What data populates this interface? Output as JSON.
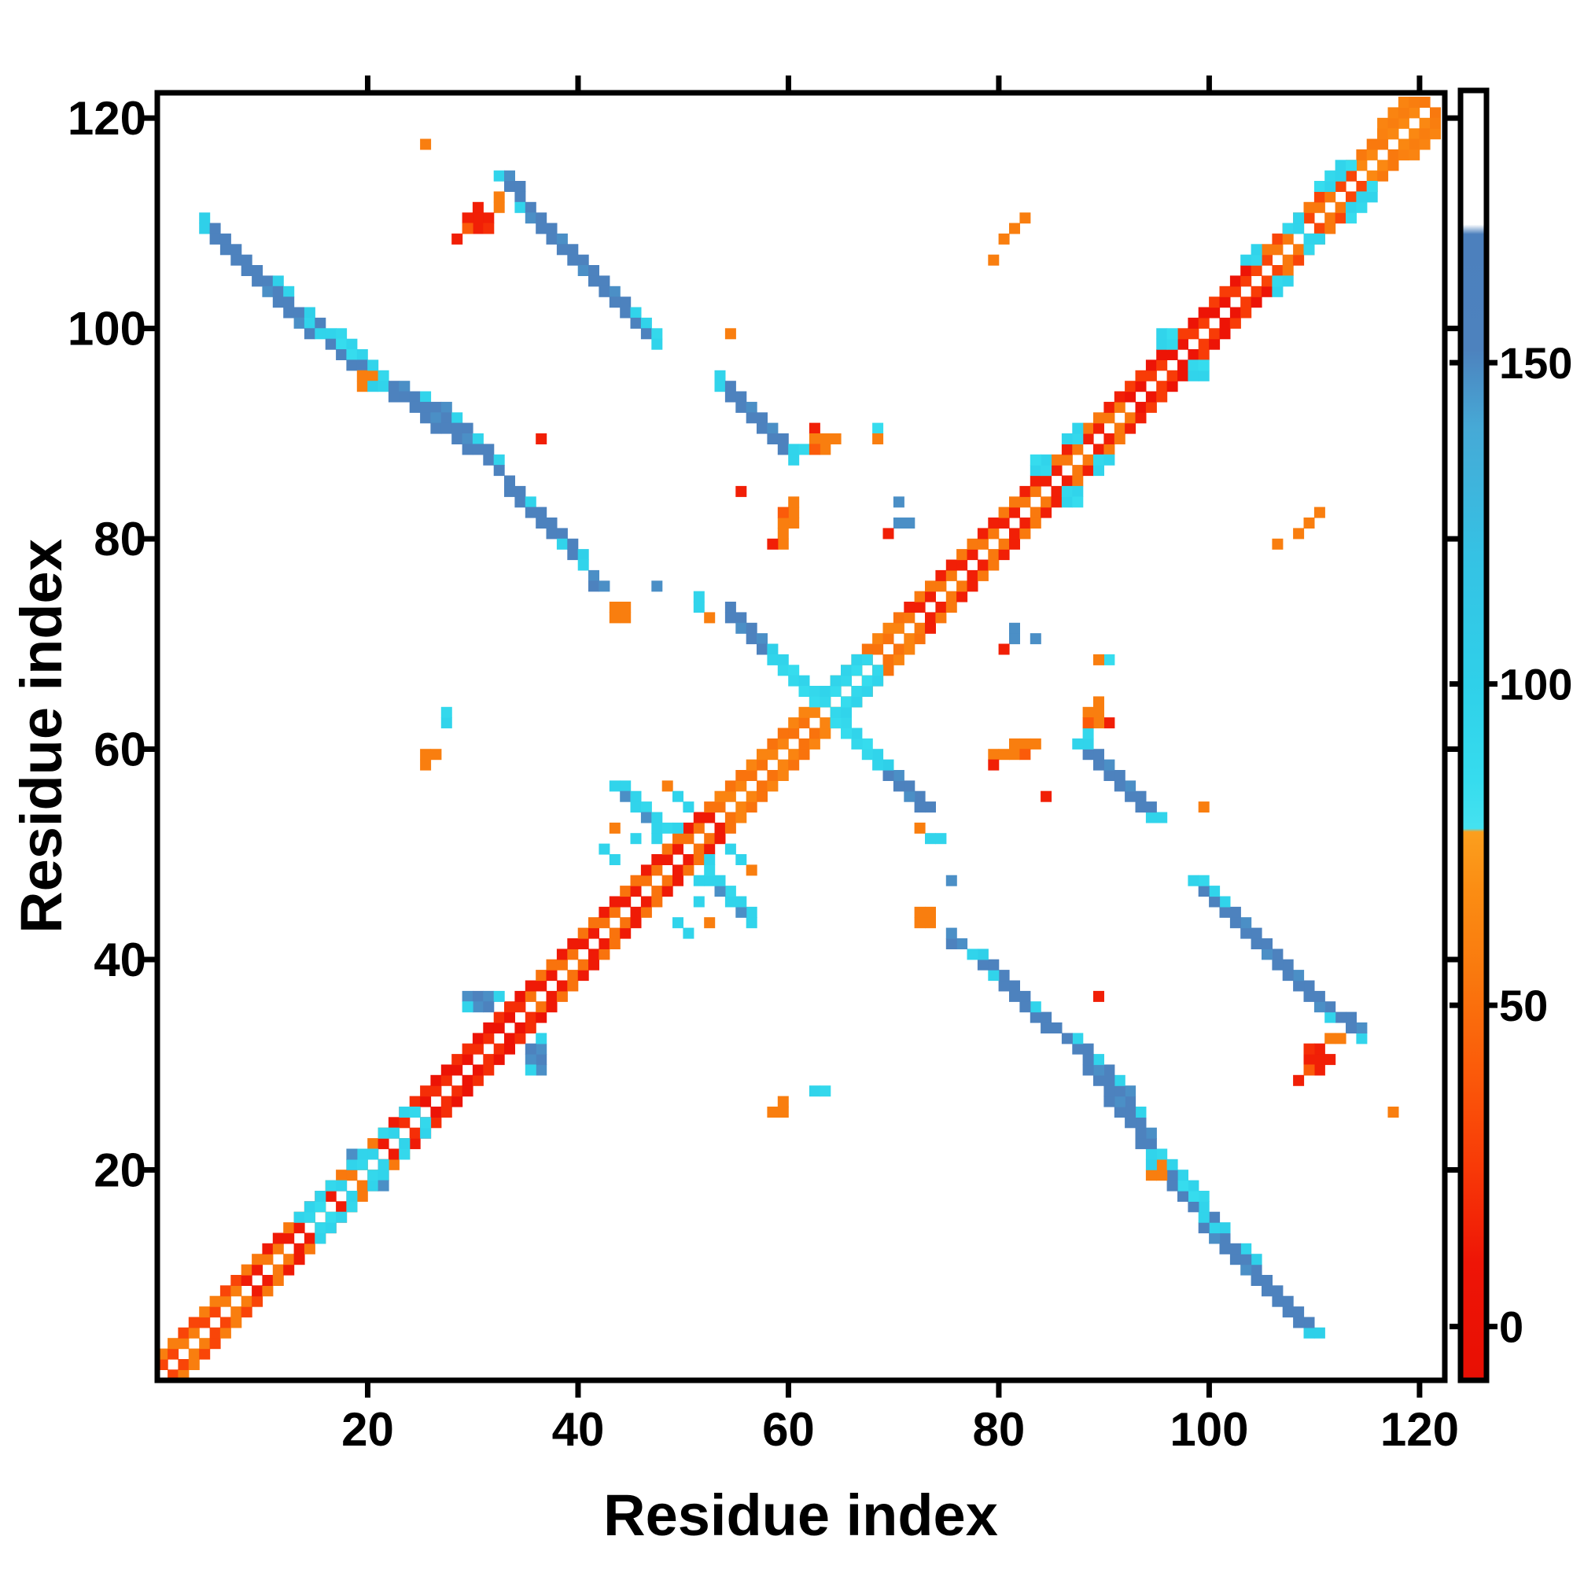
{
  "chart_data": {
    "type": "heatmap",
    "title": "",
    "xlabel": "Residue index",
    "ylabel": "Residue index",
    "x_ticks": [
      20,
      40,
      60,
      80,
      100,
      120
    ],
    "y_ticks": [
      20,
      40,
      60,
      80,
      100,
      120
    ],
    "x_range": [
      0,
      122.4
    ],
    "y_range": [
      0,
      122.4
    ],
    "n_residues": 122,
    "grid": false,
    "legend_position": "right-colorbar",
    "colorbar": {
      "ticks": [
        0,
        50,
        100,
        150
      ],
      "vmin": -8,
      "vmax": 192,
      "stops": [
        [
          192,
          "#ffffff"
        ],
        [
          171.5,
          "#ffffff"
        ],
        [
          170,
          "#4c80bd"
        ],
        [
          152,
          "#4d82be"
        ],
        [
          140,
          "#46a9d6"
        ],
        [
          120,
          "#35c2e4"
        ],
        [
          100,
          "#2fd0e9"
        ],
        [
          85,
          "#36dcee"
        ],
        [
          77.5,
          "#45e2f0"
        ],
        [
          77,
          "#fb9f1e"
        ],
        [
          68,
          "#fb8d13"
        ],
        [
          55,
          "#f9790e"
        ],
        [
          40,
          "#fb5b0a"
        ],
        [
          25,
          "#f83a07"
        ],
        [
          10,
          "#ee1506"
        ],
        [
          -8,
          "#e80f04"
        ]
      ]
    },
    "diagonal_band": {
      "note": "contact band cells (i,i+1) and (i,i+2) plus mirrors; exact diagonal (i,i) is white",
      "twist_period": 4,
      "regions": [
        {
          "from": 1,
          "to": 8,
          "lo": 30,
          "hi": 58
        },
        {
          "from": 9,
          "to": 23,
          "lo": 12,
          "hi": 55
        },
        {
          "from": 24,
          "to": 35,
          "lo": 5,
          "hi": 20
        },
        {
          "from": 36,
          "to": 53,
          "lo": 12,
          "hi": 52
        },
        {
          "from": 54,
          "to": 71,
          "lo": 52,
          "hi": 62
        },
        {
          "from": 72,
          "to": 92,
          "lo": 14,
          "hi": 55
        },
        {
          "from": 93,
          "to": 104,
          "lo": 6,
          "hi": 26
        },
        {
          "from": 105,
          "to": 114,
          "lo": 30,
          "hi": 55
        },
        {
          "from": 115,
          "to": 121,
          "lo": 55,
          "hi": 65
        }
      ]
    },
    "cells": [
      [
        5,
        111,
        100
      ],
      [
        5,
        110,
        100
      ],
      [
        6,
        110,
        152
      ],
      [
        6,
        109,
        152
      ],
      [
        7,
        109,
        152
      ],
      [
        7,
        108,
        152
      ],
      [
        8,
        108,
        152
      ],
      [
        8,
        107,
        152
      ],
      [
        9,
        107,
        152
      ],
      [
        9,
        106,
        152
      ],
      [
        10,
        106,
        152
      ],
      [
        10,
        105,
        152
      ],
      [
        11,
        105,
        152
      ],
      [
        11,
        104,
        148
      ],
      [
        12,
        105,
        100
      ],
      [
        12,
        104,
        152
      ],
      [
        12,
        103,
        152
      ],
      [
        13,
        104,
        95
      ],
      [
        13,
        103,
        152
      ],
      [
        13,
        102,
        152
      ],
      [
        14,
        102,
        152
      ],
      [
        14,
        101,
        148
      ],
      [
        15,
        102,
        100
      ],
      [
        15,
        101,
        95
      ],
      [
        15,
        100,
        152
      ],
      [
        16,
        101,
        152
      ],
      [
        16,
        100,
        95
      ],
      [
        17,
        100,
        95
      ],
      [
        17,
        99,
        152
      ],
      [
        18,
        100,
        90
      ],
      [
        18,
        99,
        85
      ],
      [
        18,
        98,
        152
      ],
      [
        19,
        99,
        95
      ],
      [
        19,
        98,
        85
      ],
      [
        19,
        97,
        152
      ],
      [
        20,
        98,
        95
      ],
      [
        20,
        97,
        152
      ],
      [
        20,
        96,
        58
      ],
      [
        21,
        96,
        58
      ],
      [
        20,
        95,
        58
      ],
      [
        21,
        97,
        95
      ],
      [
        21,
        95,
        100
      ],
      [
        22,
        96,
        90
      ],
      [
        22,
        95,
        95
      ],
      [
        23,
        95,
        152
      ],
      [
        23,
        94,
        152
      ],
      [
        24,
        95,
        148
      ],
      [
        24,
        94,
        152
      ],
      [
        25,
        94,
        152
      ],
      [
        25,
        93,
        152
      ],
      [
        26,
        94,
        95
      ],
      [
        26,
        93,
        152
      ],
      [
        26,
        92,
        152
      ],
      [
        27,
        93,
        152
      ],
      [
        27,
        92,
        148
      ],
      [
        27,
        91,
        152
      ],
      [
        28,
        93,
        148
      ],
      [
        28,
        92,
        152
      ],
      [
        28,
        91,
        152
      ],
      [
        29,
        92,
        95
      ],
      [
        29,
        91,
        152
      ],
      [
        29,
        90,
        152
      ],
      [
        30,
        91,
        152
      ],
      [
        30,
        90,
        148
      ],
      [
        30,
        89,
        152
      ],
      [
        31,
        90,
        95
      ],
      [
        31,
        89,
        152
      ],
      [
        32,
        89,
        152
      ],
      [
        32,
        88,
        152
      ],
      [
        33,
        88,
        95
      ],
      [
        33,
        87,
        152
      ],
      [
        34,
        86,
        152
      ],
      [
        34,
        85,
        152
      ],
      [
        35,
        85,
        152
      ],
      [
        35,
        84,
        152
      ],
      [
        36,
        84,
        95
      ],
      [
        36,
        83,
        152
      ],
      [
        37,
        83,
        152
      ],
      [
        37,
        82,
        152
      ],
      [
        38,
        82,
        152
      ],
      [
        38,
        81,
        152
      ],
      [
        39,
        81,
        152
      ],
      [
        39,
        80,
        95
      ],
      [
        40,
        80,
        152
      ],
      [
        40,
        79,
        152
      ],
      [
        41,
        79,
        100
      ],
      [
        41,
        78,
        95
      ],
      [
        42,
        77,
        148
      ],
      [
        42,
        76,
        152
      ],
      [
        43,
        76,
        148
      ],
      [
        44,
        74,
        58
      ],
      [
        45,
        74,
        58
      ],
      [
        44,
        73,
        58
      ],
      [
        45,
        73,
        58
      ],
      [
        48,
        76,
        148
      ],
      [
        52,
        75,
        95
      ],
      [
        52,
        74,
        95
      ],
      [
        53,
        73,
        58
      ],
      [
        55,
        74,
        152
      ],
      [
        55,
        73,
        152
      ],
      [
        56,
        73,
        152
      ],
      [
        56,
        72,
        148
      ],
      [
        57,
        72,
        152
      ],
      [
        57,
        71,
        152
      ],
      [
        58,
        71,
        148
      ],
      [
        58,
        70,
        152
      ],
      [
        59,
        70,
        100
      ],
      [
        59,
        69,
        95
      ],
      [
        60,
        69,
        95
      ],
      [
        60,
        68,
        90
      ],
      [
        61,
        68,
        85
      ],
      [
        61,
        67,
        90
      ],
      [
        62,
        67,
        95
      ],
      [
        62,
        66,
        85
      ],
      [
        63,
        66,
        90
      ],
      [
        63,
        65,
        85
      ],
      [
        64,
        65,
        90
      ],
      [
        64,
        66,
        95
      ],
      [
        65,
        66,
        85
      ],
      [
        65,
        67,
        95
      ],
      [
        66,
        67,
        90
      ],
      [
        66,
        68,
        95
      ],
      [
        67,
        68,
        85
      ],
      [
        67,
        69,
        95
      ],
      [
        68,
        69,
        90
      ],
      [
        33,
        115,
        95
      ],
      [
        34,
        115,
        148
      ],
      [
        34,
        114,
        152
      ],
      [
        35,
        114,
        152
      ],
      [
        35,
        113,
        152
      ],
      [
        35,
        112,
        95
      ],
      [
        36,
        112,
        152
      ],
      [
        36,
        111,
        148
      ],
      [
        37,
        111,
        152
      ],
      [
        37,
        110,
        152
      ],
      [
        38,
        110,
        152
      ],
      [
        38,
        109,
        152
      ],
      [
        39,
        109,
        148
      ],
      [
        39,
        108,
        152
      ],
      [
        40,
        108,
        152
      ],
      [
        40,
        107,
        152
      ],
      [
        41,
        107,
        152
      ],
      [
        41,
        106,
        148
      ],
      [
        42,
        106,
        152
      ],
      [
        42,
        105,
        152
      ],
      [
        43,
        105,
        152
      ],
      [
        43,
        104,
        152
      ],
      [
        44,
        104,
        148
      ],
      [
        44,
        103,
        152
      ],
      [
        45,
        103,
        152
      ],
      [
        45,
        102,
        152
      ],
      [
        46,
        102,
        95
      ],
      [
        46,
        101,
        152
      ],
      [
        47,
        101,
        95
      ],
      [
        47,
        100,
        152
      ],
      [
        48,
        100,
        90
      ],
      [
        48,
        99,
        95
      ],
      [
        33,
        113,
        58
      ],
      [
        33,
        112,
        58
      ],
      [
        31,
        112,
        14
      ],
      [
        31,
        111,
        14
      ],
      [
        32,
        111,
        14
      ],
      [
        31,
        110,
        14
      ],
      [
        32,
        110,
        20
      ],
      [
        30,
        111,
        14
      ],
      [
        29,
        109,
        14
      ],
      [
        30,
        110,
        40
      ],
      [
        54,
        96,
        95
      ],
      [
        54,
        95,
        95
      ],
      [
        55,
        95,
        152
      ],
      [
        55,
        94,
        152
      ],
      [
        56,
        94,
        152
      ],
      [
        56,
        93,
        152
      ],
      [
        57,
        93,
        148
      ],
      [
        57,
        92,
        152
      ],
      [
        58,
        92,
        152
      ],
      [
        58,
        91,
        152
      ],
      [
        59,
        91,
        148
      ],
      [
        59,
        90,
        152
      ],
      [
        60,
        90,
        152
      ],
      [
        60,
        89,
        152
      ],
      [
        61,
        89,
        95
      ],
      [
        61,
        88,
        95
      ],
      [
        62,
        89,
        90
      ],
      [
        63,
        91,
        14
      ],
      [
        63,
        90,
        58
      ],
      [
        64,
        90,
        58
      ],
      [
        64,
        89,
        58
      ],
      [
        63,
        89,
        40
      ],
      [
        65,
        90,
        58
      ],
      [
        55,
        100,
        58
      ],
      [
        69,
        91,
        85
      ],
      [
        69,
        90,
        58
      ],
      [
        60,
        80,
        58
      ],
      [
        60,
        81,
        58
      ],
      [
        60,
        82,
        58
      ],
      [
        61,
        82,
        58
      ],
      [
        61,
        83,
        58
      ],
      [
        61,
        84,
        58
      ],
      [
        60,
        83,
        40
      ],
      [
        59,
        80,
        14
      ],
      [
        56,
        85,
        14
      ],
      [
        71,
        84,
        148
      ],
      [
        71,
        82,
        148
      ],
      [
        72,
        82,
        148
      ],
      [
        70,
        81,
        14
      ],
      [
        44,
        57,
        95
      ],
      [
        45,
        57,
        95
      ],
      [
        45,
        56,
        148
      ],
      [
        46,
        56,
        95
      ],
      [
        46,
        55,
        95
      ],
      [
        47,
        55,
        90
      ],
      [
        47,
        54,
        148
      ],
      [
        48,
        54,
        95
      ],
      [
        48,
        53,
        95
      ],
      [
        49,
        53,
        90
      ],
      [
        48,
        52,
        95
      ],
      [
        50,
        53,
        95
      ],
      [
        49,
        57,
        58
      ],
      [
        44,
        53,
        58
      ],
      [
        46,
        52,
        95
      ],
      [
        50,
        56,
        95
      ],
      [
        51,
        55,
        95
      ],
      [
        44,
        50,
        95
      ],
      [
        43,
        51,
        95
      ],
      [
        14,
        16,
        95
      ],
      [
        15,
        16,
        90
      ],
      [
        15,
        17,
        95
      ],
      [
        16,
        17,
        85
      ],
      [
        16,
        18,
        95
      ],
      [
        17,
        19,
        90
      ],
      [
        18,
        19,
        95
      ],
      [
        19,
        21,
        95
      ],
      [
        20,
        21,
        90
      ],
      [
        20,
        22,
        95
      ],
      [
        21,
        22,
        95
      ],
      [
        22,
        24,
        90
      ],
      [
        23,
        24,
        95
      ],
      [
        19,
        22,
        148
      ],
      [
        24,
        26,
        95
      ],
      [
        25,
        26,
        90
      ],
      [
        30,
        37,
        148
      ],
      [
        31,
        37,
        152
      ],
      [
        32,
        37,
        148
      ],
      [
        33,
        37,
        95
      ],
      [
        31,
        36,
        148
      ],
      [
        32,
        36,
        152
      ],
      [
        30,
        36,
        95
      ],
      [
        28,
        63,
        95
      ],
      [
        28,
        64,
        90
      ],
      [
        26,
        59,
        58
      ],
      [
        26,
        60,
        58
      ],
      [
        27,
        60,
        58
      ],
      [
        37,
        90,
        14
      ],
      [
        80,
        107,
        58
      ],
      [
        81,
        109,
        58
      ],
      [
        82,
        110,
        58
      ],
      [
        83,
        111,
        58
      ],
      [
        84,
        87,
        95
      ],
      [
        85,
        87,
        90
      ],
      [
        85,
        88,
        95
      ],
      [
        84,
        88,
        85
      ],
      [
        87,
        90,
        95
      ],
      [
        88,
        90,
        90
      ],
      [
        88,
        91,
        95
      ],
      [
        96,
        99,
        95
      ],
      [
        97,
        99,
        90
      ],
      [
        96,
        100,
        95
      ],
      [
        97,
        100,
        85
      ],
      [
        104,
        107,
        95
      ],
      [
        105,
        107,
        90
      ],
      [
        105,
        108,
        95
      ],
      [
        108,
        110,
        90
      ],
      [
        109,
        110,
        95
      ],
      [
        109,
        111,
        95
      ],
      [
        111,
        114,
        85
      ],
      [
        112,
        114,
        95
      ],
      [
        112,
        115,
        90
      ],
      [
        113,
        116,
        95
      ],
      [
        114,
        116,
        85
      ],
      [
        113,
        115,
        95
      ],
      [
        117,
        119,
        60
      ],
      [
        117,
        120,
        62
      ],
      [
        118,
        120,
        58
      ],
      [
        118,
        121,
        62
      ],
      [
        119,
        121,
        58
      ],
      [
        119,
        122,
        62
      ],
      [
        120,
        122,
        58
      ],
      [
        118,
        119,
        64
      ],
      [
        26,
        118,
        58
      ]
    ]
  }
}
